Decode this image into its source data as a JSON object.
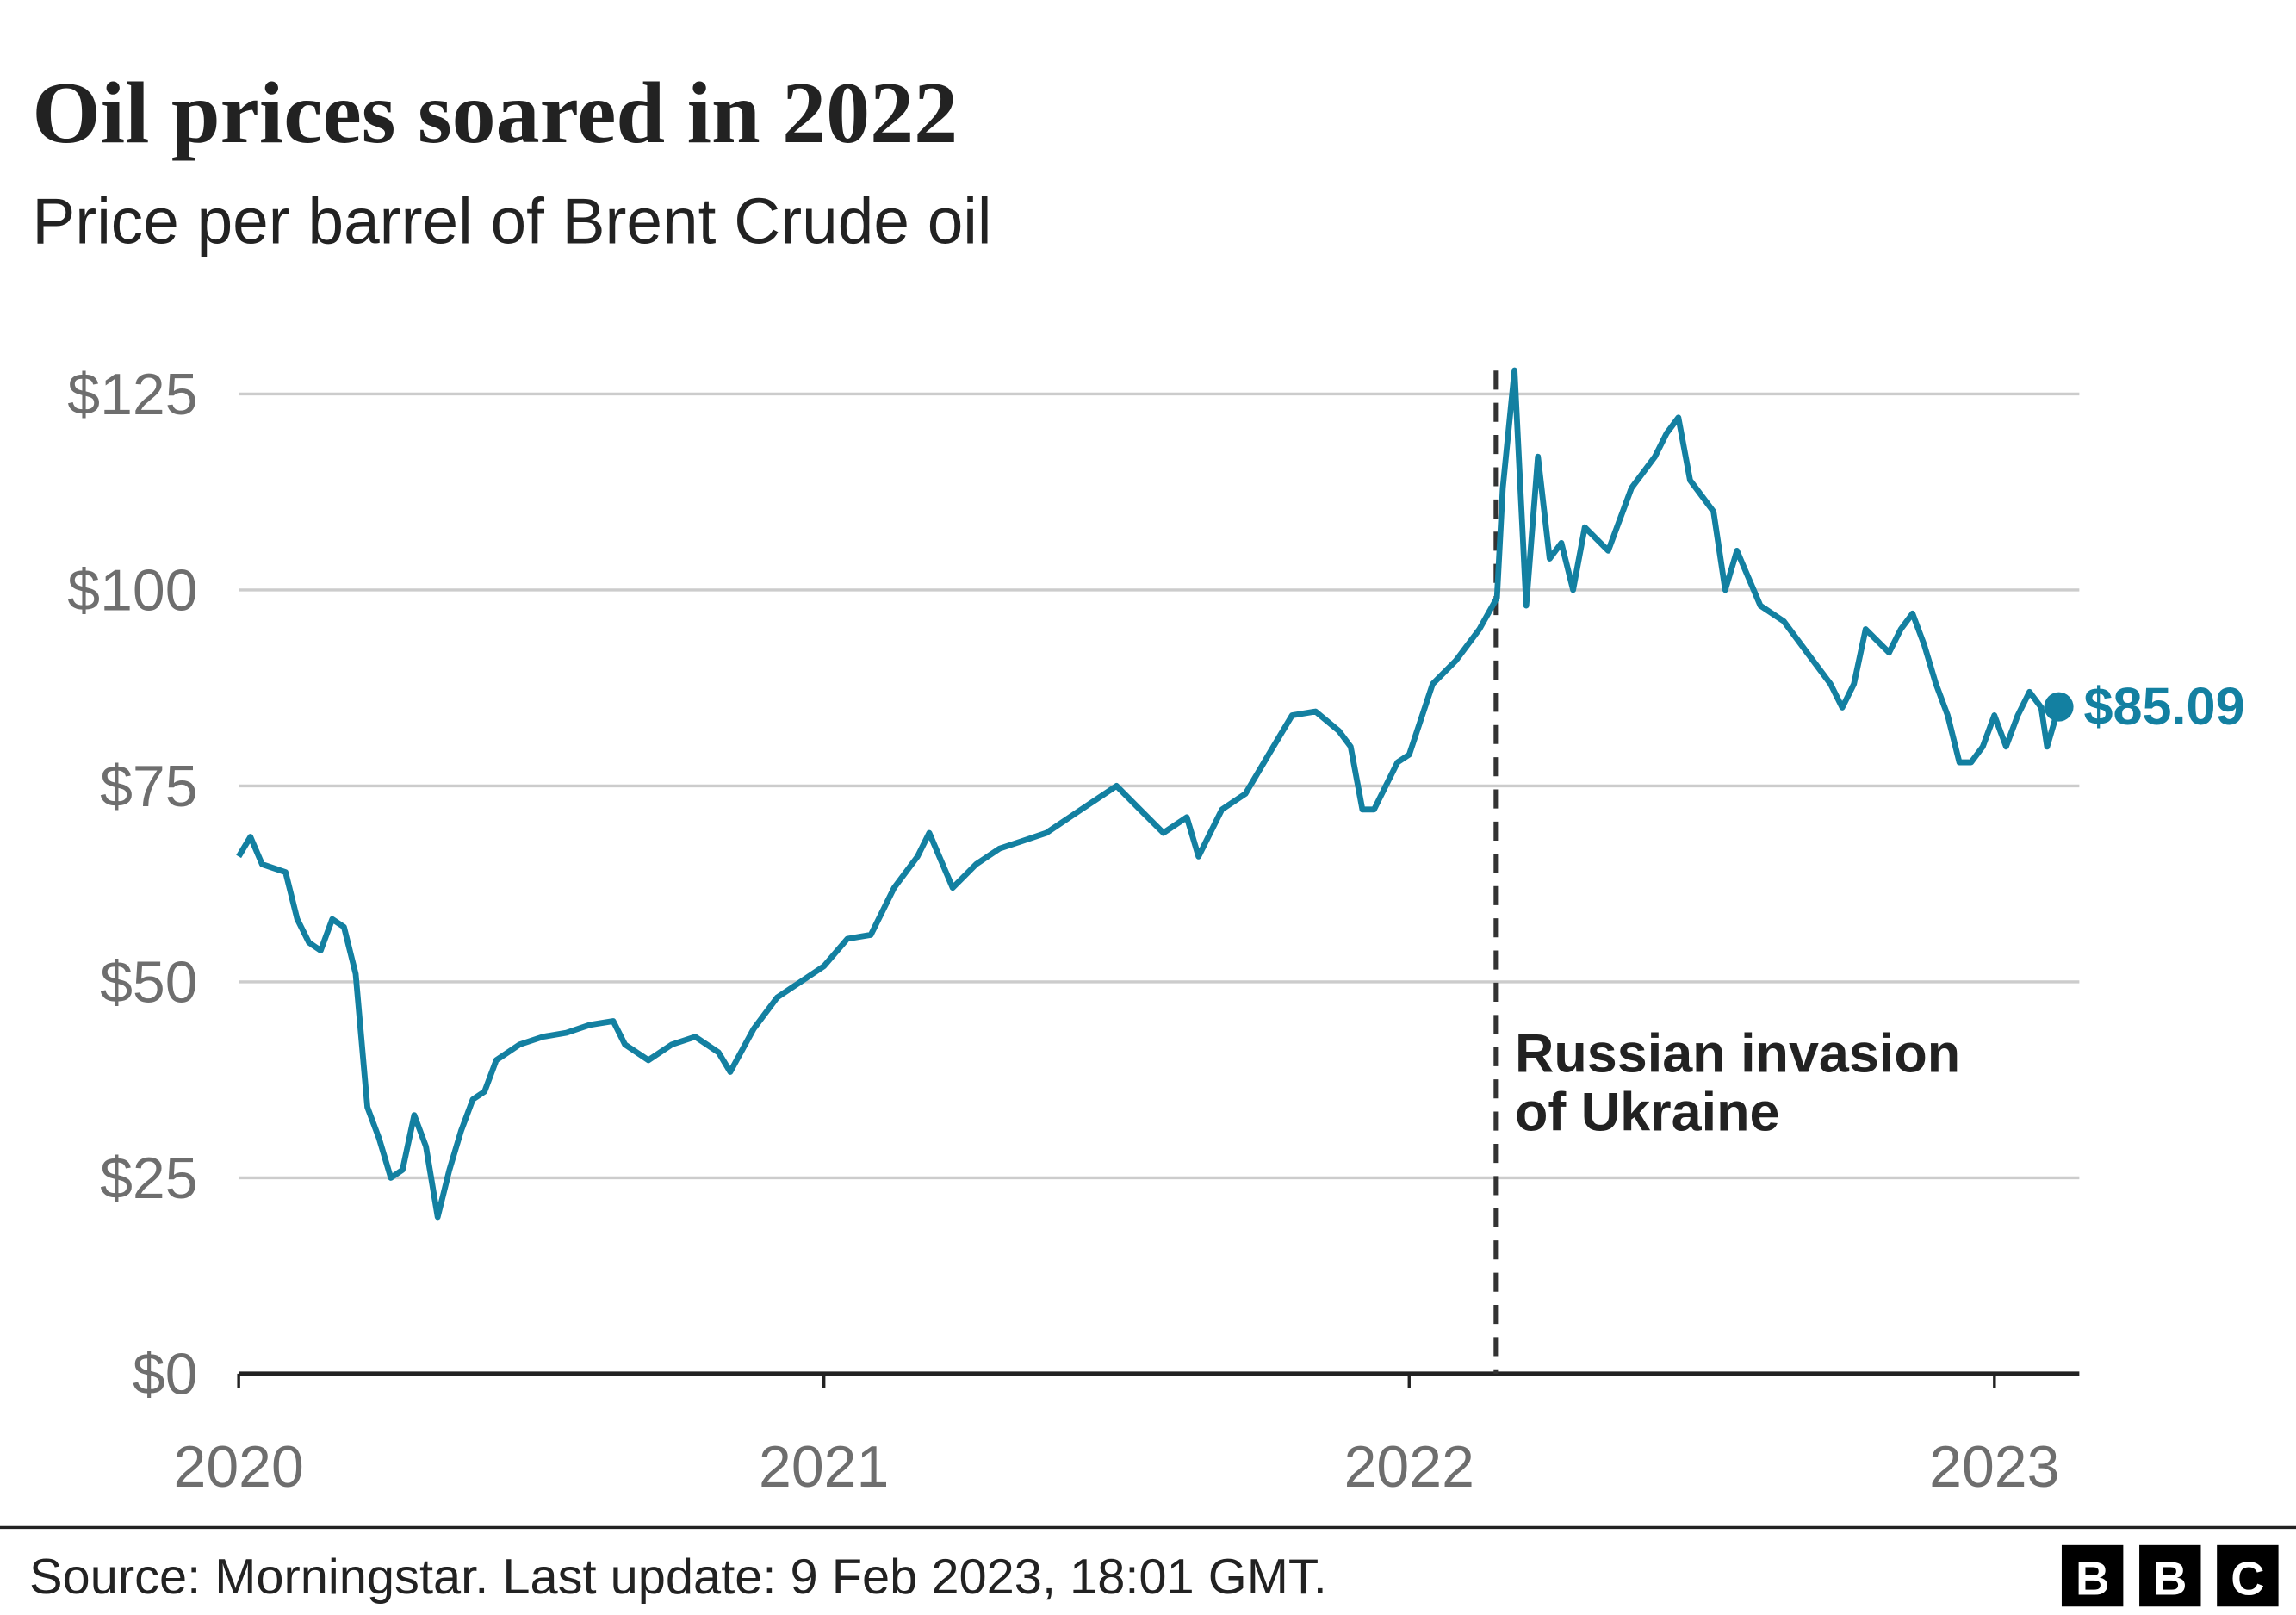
{
  "chart_data": {
    "type": "line",
    "title": "Oil prices soared in 2022",
    "subtitle": "Price per barrel of Brent Crude oil",
    "x": [
      2020.0,
      2020.02,
      2020.04,
      2020.06,
      2020.08,
      2020.1,
      2020.12,
      2020.14,
      2020.16,
      2020.18,
      2020.2,
      2020.22,
      2020.24,
      2020.26,
      2020.28,
      2020.3,
      2020.32,
      2020.34,
      2020.36,
      2020.38,
      2020.4,
      2020.42,
      2020.44,
      2020.48,
      2020.52,
      2020.56,
      2020.6,
      2020.64,
      2020.66,
      2020.7,
      2020.74,
      2020.78,
      2020.82,
      2020.84,
      2020.88,
      2020.92,
      2020.96,
      2021.0,
      2021.04,
      2021.08,
      2021.12,
      2021.16,
      2021.18,
      2021.22,
      2021.26,
      2021.3,
      2021.34,
      2021.38,
      2021.42,
      2021.46,
      2021.5,
      2021.54,
      2021.58,
      2021.62,
      2021.64,
      2021.68,
      2021.72,
      2021.76,
      2021.8,
      2021.84,
      2021.88,
      2021.9,
      2021.92,
      2021.94,
      2021.96,
      2021.98,
      2022.0,
      2022.04,
      2022.08,
      2022.12,
      2022.15,
      2022.16,
      2022.18,
      2022.2,
      2022.22,
      2022.24,
      2022.26,
      2022.28,
      2022.3,
      2022.34,
      2022.38,
      2022.42,
      2022.44,
      2022.46,
      2022.48,
      2022.52,
      2022.54,
      2022.56,
      2022.6,
      2022.64,
      2022.68,
      2022.72,
      2022.74,
      2022.76,
      2022.78,
      2022.82,
      2022.84,
      2022.86,
      2022.88,
      2022.9,
      2022.92,
      2022.94,
      2022.96,
      2022.98,
      2023.0,
      2023.02,
      2023.04,
      2023.06,
      2023.08,
      2023.09,
      2023.11
    ],
    "series": [
      {
        "name": "Brent Crude",
        "color": "#1380a1",
        "values": [
          66,
          68.5,
          65,
          64.5,
          64,
          58,
          55,
          54,
          58,
          57,
          51,
          34,
          30,
          25,
          26,
          33,
          29,
          20,
          26,
          31,
          35,
          36,
          40,
          42,
          43,
          43.5,
          44.5,
          45,
          42,
          40,
          42,
          43,
          41,
          38.5,
          44,
          48,
          50,
          52,
          55.5,
          56,
          62,
          66,
          69,
          62,
          65,
          67,
          68,
          69,
          71,
          73,
          75,
          72,
          69,
          71,
          66,
          72,
          74,
          79,
          84,
          84.5,
          82,
          80,
          72,
          72,
          75,
          78,
          79,
          88,
          91,
          95,
          99,
          113,
          128,
          98,
          117,
          104,
          106,
          100,
          108,
          105,
          113,
          117,
          120,
          122,
          114,
          110,
          100,
          105,
          98,
          96,
          92,
          88,
          85,
          88,
          95,
          92,
          95,
          97,
          93,
          88,
          84,
          78,
          78,
          80,
          84,
          80,
          84,
          87,
          85,
          80,
          85.09
        ]
      }
    ],
    "end_label": "$85.09",
    "xlim": [
      2020,
      2023.145
    ],
    "xticks": [
      2020,
      2021,
      2022,
      2023
    ],
    "ylim": [
      0,
      125
    ],
    "yticks": [
      {
        "value": 0,
        "label": "$0"
      },
      {
        "value": 25,
        "label": "$25"
      },
      {
        "value": 50,
        "label": "$50"
      },
      {
        "value": 75,
        "label": "$75"
      },
      {
        "value": 100,
        "label": "$100"
      },
      {
        "value": 125,
        "label": "$125"
      }
    ],
    "grid": true,
    "annotation": {
      "x": 2022.148,
      "lines": [
        "Russian invasion",
        "of Ukraine"
      ]
    },
    "source": "Source: Morningstar. Last update: 9 Feb 2023, 18:01 GMT.",
    "logo": [
      "B",
      "B",
      "C"
    ]
  }
}
